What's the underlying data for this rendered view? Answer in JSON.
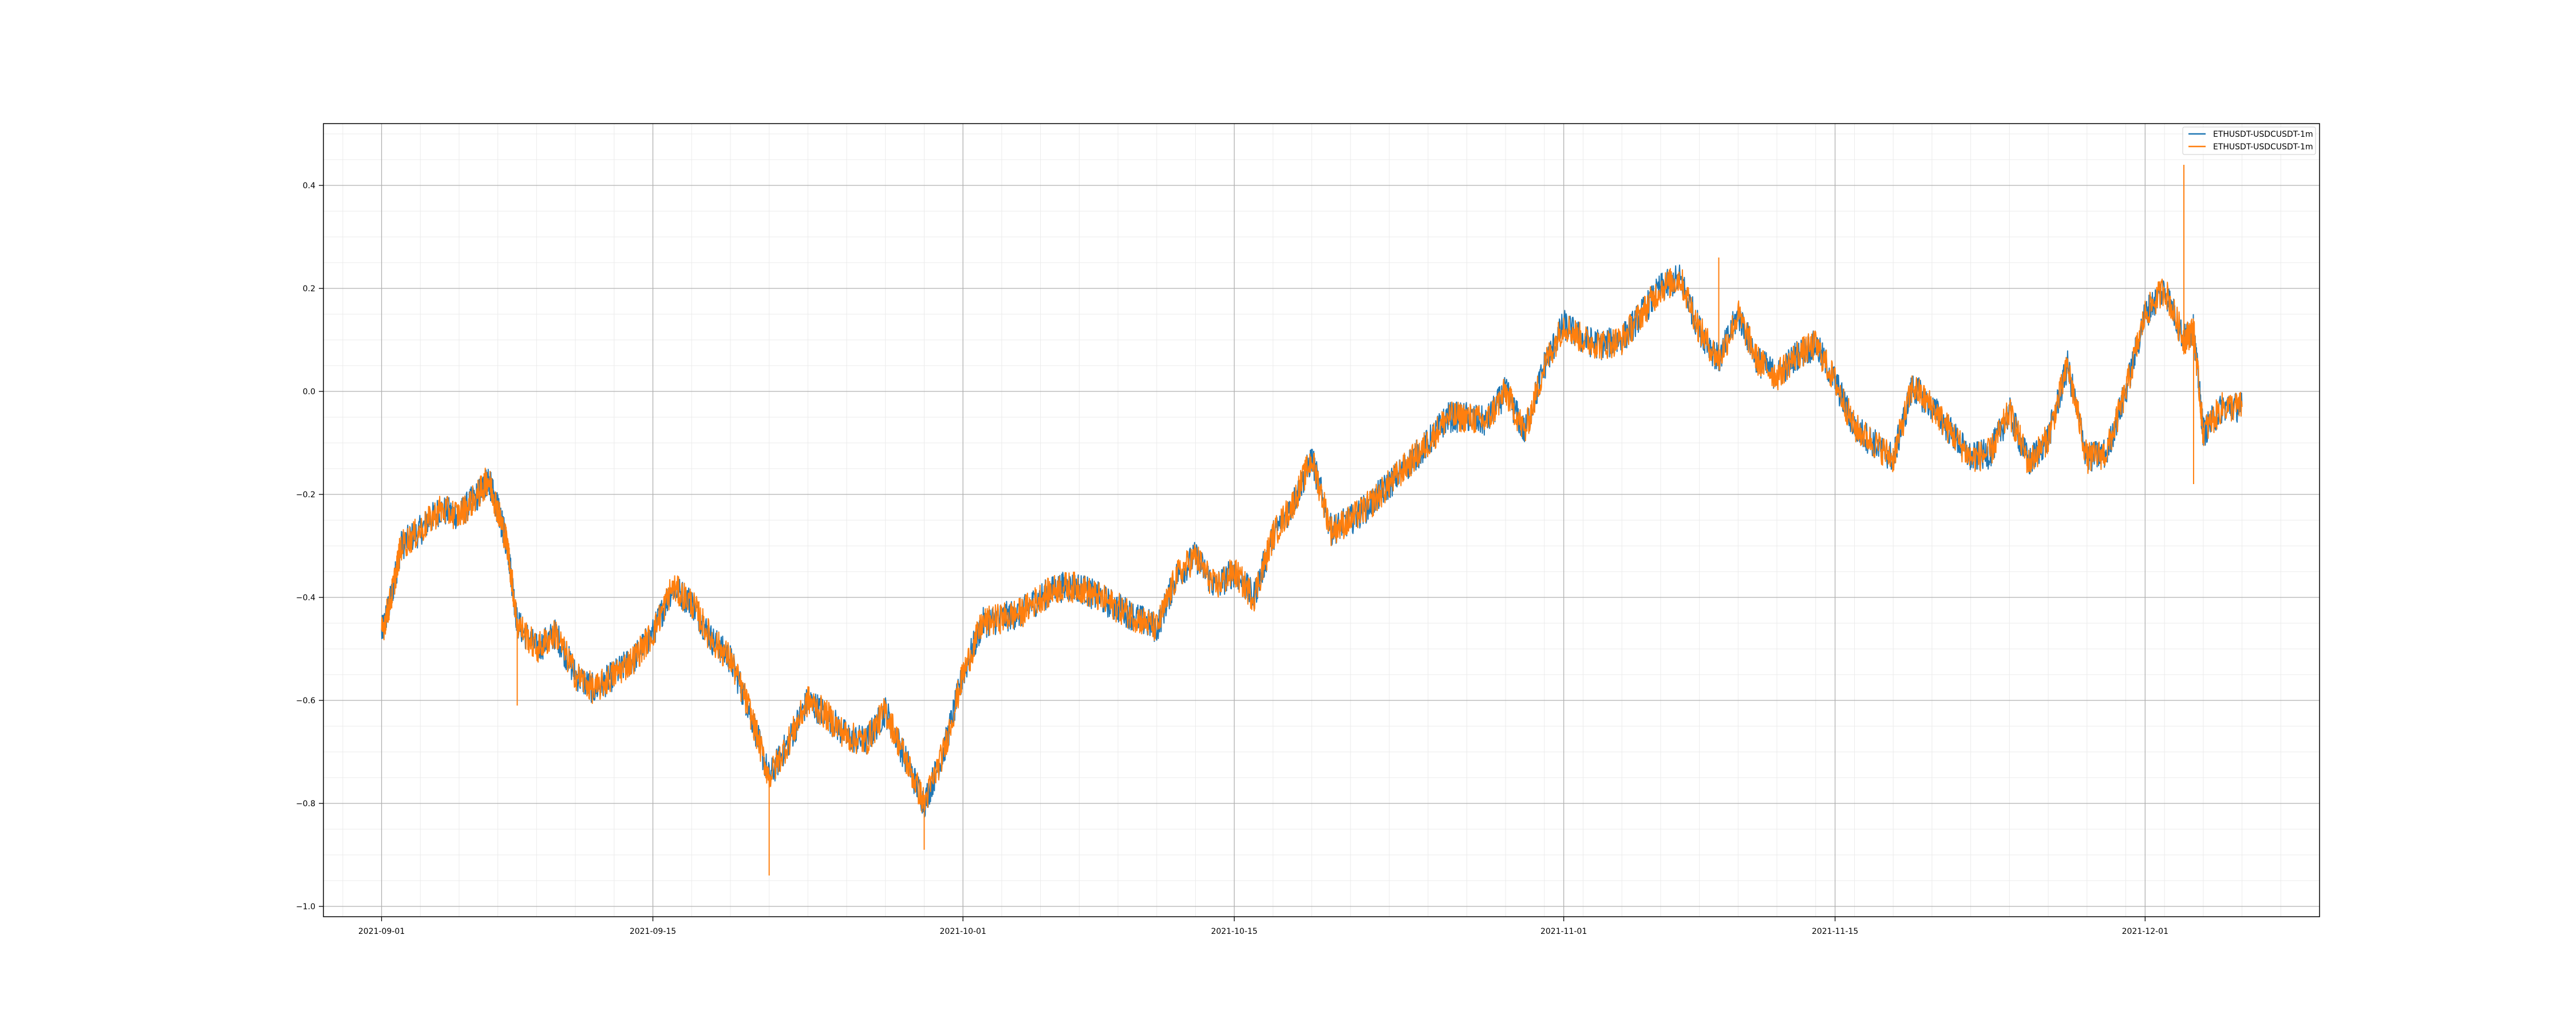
{
  "chart_data": {
    "type": "line",
    "title": "",
    "xlabel": "",
    "ylabel": "",
    "x_type": "date",
    "xlim": [
      "2021-08-29",
      "2021-12-10"
    ],
    "ylim": [
      -1.02,
      0.52
    ],
    "x_ticks": [
      "2021-09-01",
      "2021-09-15",
      "2021-10-01",
      "2021-10-15",
      "2021-11-01",
      "2021-11-15",
      "2021-12-01"
    ],
    "y_ticks": [
      -1.0,
      -0.8,
      -0.6,
      -0.4,
      -0.2,
      0.0,
      0.2,
      0.4
    ],
    "y_tick_labels": [
      "−1.0",
      "−0.8",
      "−0.6",
      "−0.4",
      "−0.2",
      "0.0",
      "0.2",
      "0.4"
    ],
    "grid": {
      "major": true,
      "minor": true
    },
    "legend": {
      "position": "top-right"
    },
    "series": [
      {
        "name": "ETHUSDT-USDCUSDT-1m",
        "color": "#1f77b4",
        "x": [
          "2021-09-01",
          "2021-09-01T12:00",
          "2021-09-02",
          "2021-09-03",
          "2021-09-04",
          "2021-09-05",
          "2021-09-06",
          "2021-09-06T12:00",
          "2021-09-07",
          "2021-09-07T12:00",
          "2021-09-08",
          "2021-09-09",
          "2021-09-10",
          "2021-09-11",
          "2021-09-12",
          "2021-09-13",
          "2021-09-14",
          "2021-09-15",
          "2021-09-16",
          "2021-09-17",
          "2021-09-18",
          "2021-09-19",
          "2021-09-20",
          "2021-09-21",
          "2021-09-22",
          "2021-09-23",
          "2021-09-24",
          "2021-09-25",
          "2021-09-26",
          "2021-09-27",
          "2021-09-28",
          "2021-09-29",
          "2021-09-30",
          "2021-10-01",
          "2021-10-02",
          "2021-10-03",
          "2021-10-04",
          "2021-10-05",
          "2021-10-06",
          "2021-10-07",
          "2021-10-08",
          "2021-10-09",
          "2021-10-10",
          "2021-10-11",
          "2021-10-12",
          "2021-10-13",
          "2021-10-14",
          "2021-10-15",
          "2021-10-16",
          "2021-10-17",
          "2021-10-18",
          "2021-10-19",
          "2021-10-20",
          "2021-10-21",
          "2021-10-22",
          "2021-10-23",
          "2021-10-24",
          "2021-10-25",
          "2021-10-26",
          "2021-10-27",
          "2021-10-28",
          "2021-10-29",
          "2021-10-30",
          "2021-10-31",
          "2021-11-01",
          "2021-11-02",
          "2021-11-03",
          "2021-11-04",
          "2021-11-05",
          "2021-11-06",
          "2021-11-07",
          "2021-11-08",
          "2021-11-09",
          "2021-11-10",
          "2021-11-11",
          "2021-11-12",
          "2021-11-13",
          "2021-11-14",
          "2021-11-15",
          "2021-11-16",
          "2021-11-17",
          "2021-11-18",
          "2021-11-19",
          "2021-11-20",
          "2021-11-21",
          "2021-11-22",
          "2021-11-23",
          "2021-11-24",
          "2021-11-25",
          "2021-11-26",
          "2021-11-27",
          "2021-11-28",
          "2021-11-29",
          "2021-11-30",
          "2021-12-01",
          "2021-12-02",
          "2021-12-03",
          "2021-12-03T12:00",
          "2021-12-04",
          "2021-12-05",
          "2021-12-06"
        ],
        "y": [
          -0.47,
          -0.4,
          -0.3,
          -0.27,
          -0.23,
          -0.24,
          -0.2,
          -0.17,
          -0.23,
          -0.3,
          -0.45,
          -0.5,
          -0.47,
          -0.55,
          -0.58,
          -0.55,
          -0.52,
          -0.47,
          -0.38,
          -0.41,
          -0.48,
          -0.52,
          -0.62,
          -0.75,
          -0.68,
          -0.6,
          -0.63,
          -0.67,
          -0.68,
          -0.62,
          -0.71,
          -0.8,
          -0.7,
          -0.55,
          -0.45,
          -0.44,
          -0.43,
          -0.4,
          -0.38,
          -0.38,
          -0.4,
          -0.42,
          -0.44,
          -0.46,
          -0.36,
          -0.32,
          -0.38,
          -0.35,
          -0.4,
          -0.28,
          -0.22,
          -0.13,
          -0.27,
          -0.25,
          -0.22,
          -0.18,
          -0.14,
          -0.1,
          -0.05,
          -0.05,
          -0.06,
          0.0,
          -0.08,
          0.05,
          0.13,
          0.1,
          0.09,
          0.1,
          0.15,
          0.2,
          0.22,
          0.12,
          0.06,
          0.15,
          0.06,
          0.03,
          0.07,
          0.09,
          0.02,
          -0.07,
          -0.1,
          -0.13,
          0.01,
          -0.03,
          -0.08,
          -0.13,
          -0.12,
          -0.04,
          -0.14,
          -0.09,
          0.05,
          -0.13,
          -0.12,
          0.0,
          0.15,
          0.2,
          0.1,
          0.12,
          -0.08,
          -0.03,
          -0.03
        ]
      },
      {
        "name": "ETHUSDT-USDCUSDT-1m",
        "color": "#ff7f0e",
        "x": [
          "2021-09-01",
          "2021-09-01T12:00",
          "2021-09-02",
          "2021-09-03",
          "2021-09-04",
          "2021-09-05",
          "2021-09-06",
          "2021-09-06T12:00",
          "2021-09-07",
          "2021-09-07T12:00",
          "2021-09-08",
          "2021-09-09",
          "2021-09-10",
          "2021-09-11",
          "2021-09-12",
          "2021-09-13",
          "2021-09-14",
          "2021-09-15",
          "2021-09-16",
          "2021-09-17",
          "2021-09-18",
          "2021-09-19",
          "2021-09-20",
          "2021-09-21",
          "2021-09-22",
          "2021-09-23",
          "2021-09-24",
          "2021-09-25",
          "2021-09-26",
          "2021-09-27",
          "2021-09-28",
          "2021-09-29",
          "2021-09-30",
          "2021-10-01",
          "2021-10-02",
          "2021-10-03",
          "2021-10-04",
          "2021-10-05",
          "2021-10-06",
          "2021-10-07",
          "2021-10-08",
          "2021-10-09",
          "2021-10-10",
          "2021-10-11",
          "2021-10-12",
          "2021-10-13",
          "2021-10-14",
          "2021-10-15",
          "2021-10-16",
          "2021-10-17",
          "2021-10-18",
          "2021-10-19",
          "2021-10-20",
          "2021-10-21",
          "2021-10-22",
          "2021-10-23",
          "2021-10-24",
          "2021-10-25",
          "2021-10-26",
          "2021-10-27",
          "2021-10-28",
          "2021-10-29",
          "2021-10-30",
          "2021-10-31",
          "2021-11-01",
          "2021-11-02",
          "2021-11-03",
          "2021-11-04",
          "2021-11-05",
          "2021-11-06",
          "2021-11-07",
          "2021-11-08",
          "2021-11-09",
          "2021-11-10",
          "2021-11-11",
          "2021-11-12",
          "2021-11-13",
          "2021-11-14",
          "2021-11-15",
          "2021-11-16",
          "2021-11-17",
          "2021-11-18",
          "2021-11-19",
          "2021-11-20",
          "2021-11-21",
          "2021-11-22",
          "2021-11-23",
          "2021-11-24",
          "2021-11-25",
          "2021-11-26",
          "2021-11-27",
          "2021-11-28",
          "2021-11-29",
          "2021-11-30",
          "2021-12-01",
          "2021-12-02",
          "2021-12-03",
          "2021-12-03T12:00",
          "2021-12-04",
          "2021-12-05",
          "2021-12-06"
        ],
        "y": [
          -0.47,
          -0.4,
          -0.3,
          -0.27,
          -0.23,
          -0.24,
          -0.2,
          -0.17,
          -0.23,
          -0.3,
          -0.45,
          -0.5,
          -0.47,
          -0.55,
          -0.58,
          -0.55,
          -0.52,
          -0.47,
          -0.38,
          -0.41,
          -0.48,
          -0.52,
          -0.62,
          -0.75,
          -0.68,
          -0.6,
          -0.63,
          -0.67,
          -0.68,
          -0.62,
          -0.71,
          -0.8,
          -0.7,
          -0.55,
          -0.45,
          -0.44,
          -0.43,
          -0.4,
          -0.38,
          -0.38,
          -0.4,
          -0.42,
          -0.44,
          -0.46,
          -0.36,
          -0.32,
          -0.38,
          -0.35,
          -0.4,
          -0.28,
          -0.22,
          -0.13,
          -0.27,
          -0.25,
          -0.22,
          -0.18,
          -0.14,
          -0.1,
          -0.05,
          -0.05,
          -0.06,
          0.0,
          -0.08,
          0.05,
          0.13,
          0.1,
          0.09,
          0.1,
          0.15,
          0.2,
          0.22,
          0.12,
          0.06,
          0.15,
          0.06,
          0.03,
          0.07,
          0.09,
          0.02,
          -0.07,
          -0.1,
          -0.13,
          0.01,
          -0.03,
          -0.08,
          -0.13,
          -0.12,
          -0.04,
          -0.14,
          -0.09,
          0.05,
          -0.13,
          -0.12,
          0.0,
          0.15,
          0.2,
          0.1,
          0.12,
          -0.08,
          -0.03,
          -0.03
        ]
      }
    ],
    "notable_points": [
      {
        "x": "2021-09-08",
        "y": -0.61
      },
      {
        "x": "2021-09-21",
        "y": -0.94
      },
      {
        "x": "2021-09-29",
        "y": -0.89
      },
      {
        "x": "2021-11-09",
        "y": 0.26
      },
      {
        "x": "2021-12-03",
        "y": 0.44
      },
      {
        "x": "2021-12-03T12:00",
        "y": -0.18
      }
    ]
  }
}
